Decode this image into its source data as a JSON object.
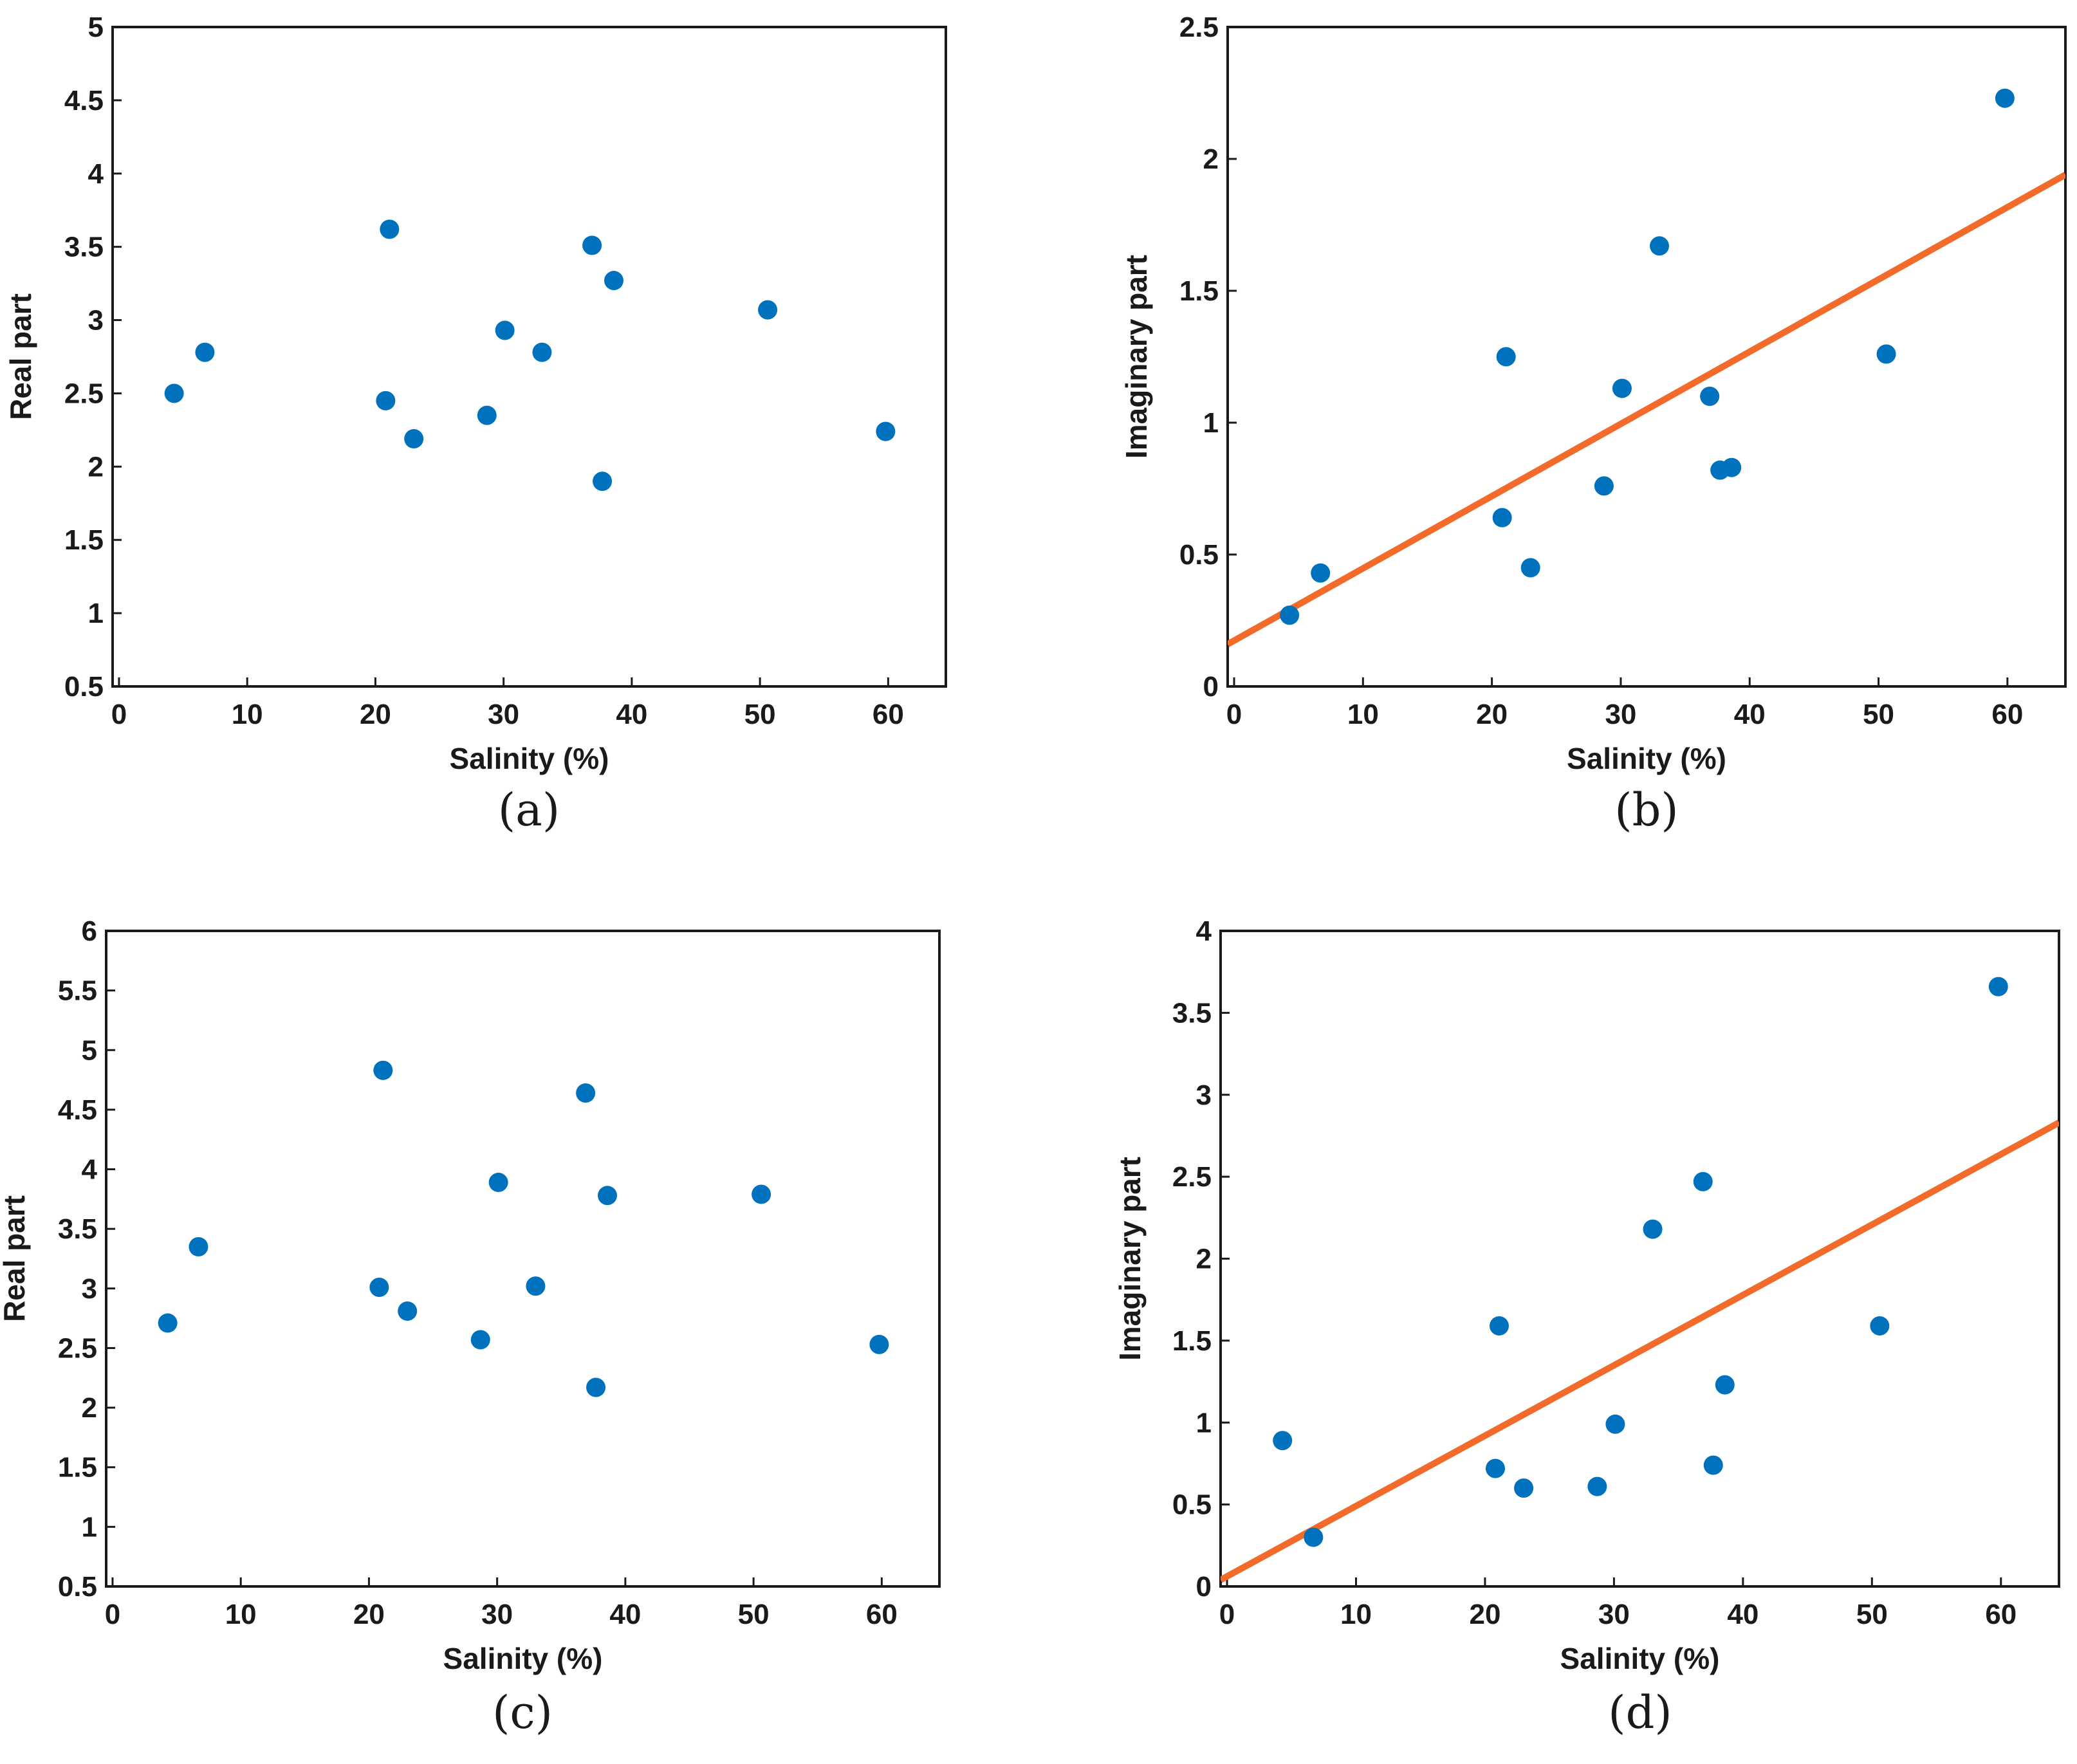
{
  "figure": {
    "marker_color": "#0072BD",
    "fit_color": "#F26B2A"
  },
  "chart_data": [
    {
      "type": "scatter",
      "caption": "(a)",
      "xlabel": "Salinity (%)",
      "ylabel": "Real part",
      "xlim": [
        -0.5,
        64.5
      ],
      "ylim": [
        0.5,
        5
      ],
      "xticks": [
        0,
        10,
        20,
        30,
        40,
        50,
        60
      ],
      "xtick_labels": [
        "0",
        "10",
        "20",
        "30",
        "40",
        "50",
        "60"
      ],
      "yticks": [
        0.5,
        1,
        1.5,
        2,
        2.5,
        3,
        3.5,
        4,
        4.5,
        5
      ],
      "ytick_labels": [
        "0.5",
        "1",
        "1.5",
        "2",
        "2.5",
        "3",
        "3.5",
        "4",
        "4.5",
        "5"
      ],
      "points": [
        {
          "x": 4.3,
          "y": 2.5
        },
        {
          "x": 6.7,
          "y": 2.78
        },
        {
          "x": 20.8,
          "y": 2.45
        },
        {
          "x": 21.1,
          "y": 3.62
        },
        {
          "x": 23.0,
          "y": 2.19
        },
        {
          "x": 28.7,
          "y": 2.35
        },
        {
          "x": 30.1,
          "y": 2.93
        },
        {
          "x": 33.0,
          "y": 2.78
        },
        {
          "x": 36.9,
          "y": 3.51
        },
        {
          "x": 37.7,
          "y": 1.9
        },
        {
          "x": 38.6,
          "y": 3.27
        },
        {
          "x": 50.6,
          "y": 3.07
        },
        {
          "x": 59.8,
          "y": 2.24
        }
      ],
      "fit": null
    },
    {
      "type": "scatter",
      "caption": "(b)",
      "xlabel": "Salinity (%)",
      "ylabel": "Imaginary part",
      "xlim": [
        -0.5,
        64.5
      ],
      "ylim": [
        0,
        2.5
      ],
      "xticks": [
        0,
        10,
        20,
        30,
        40,
        50,
        60
      ],
      "xtick_labels": [
        "0",
        "10",
        "20",
        "30",
        "40",
        "50",
        "60"
      ],
      "yticks": [
        0,
        0.5,
        1,
        1.5,
        2,
        2.5
      ],
      "ytick_labels": [
        "0",
        "0.5",
        "1",
        "1.5",
        "2",
        "2.5"
      ],
      "points": [
        {
          "x": 4.3,
          "y": 0.27
        },
        {
          "x": 6.7,
          "y": 0.43
        },
        {
          "x": 20.8,
          "y": 0.64
        },
        {
          "x": 21.1,
          "y": 1.25
        },
        {
          "x": 23.0,
          "y": 0.45
        },
        {
          "x": 28.7,
          "y": 0.76
        },
        {
          "x": 30.1,
          "y": 1.13
        },
        {
          "x": 33.0,
          "y": 1.67
        },
        {
          "x": 36.9,
          "y": 1.1
        },
        {
          "x": 37.7,
          "y": 0.82
        },
        {
          "x": 38.6,
          "y": 0.83
        },
        {
          "x": 50.6,
          "y": 1.26
        },
        {
          "x": 59.8,
          "y": 2.23
        }
      ],
      "fit": {
        "x": [
          -0.5,
          64.5
        ],
        "y": [
          0.16,
          1.94
        ]
      }
    },
    {
      "type": "scatter",
      "caption": "(c)",
      "xlabel": "Salinity (%)",
      "ylabel": "Real part",
      "xlim": [
        -0.5,
        64.5
      ],
      "ylim": [
        0.5,
        6
      ],
      "xticks": [
        0,
        10,
        20,
        30,
        40,
        50,
        60
      ],
      "xtick_labels": [
        "0",
        "10",
        "20",
        "30",
        "40",
        "50",
        "60"
      ],
      "yticks": [
        0.5,
        1,
        1.5,
        2,
        2.5,
        3,
        3.5,
        4,
        4.5,
        5,
        5.5,
        6
      ],
      "ytick_labels": [
        "0.5",
        "1",
        "1.5",
        "2",
        "2.5",
        "3",
        "3.5",
        "4",
        "4.5",
        "5",
        "5.5",
        "6"
      ],
      "points": [
        {
          "x": 4.3,
          "y": 2.71
        },
        {
          "x": 6.7,
          "y": 3.35
        },
        {
          "x": 20.8,
          "y": 3.01
        },
        {
          "x": 21.1,
          "y": 4.83
        },
        {
          "x": 23.0,
          "y": 2.81
        },
        {
          "x": 28.7,
          "y": 2.57
        },
        {
          "x": 30.1,
          "y": 3.89
        },
        {
          "x": 33.0,
          "y": 3.02
        },
        {
          "x": 36.9,
          "y": 4.64
        },
        {
          "x": 37.7,
          "y": 2.17
        },
        {
          "x": 38.6,
          "y": 3.78
        },
        {
          "x": 50.6,
          "y": 3.79
        },
        {
          "x": 59.8,
          "y": 2.53
        }
      ],
      "fit": null
    },
    {
      "type": "scatter",
      "caption": "(d)",
      "xlabel": "Salinity (%)",
      "ylabel": "Imaginary part",
      "xlim": [
        -0.5,
        64.5
      ],
      "ylim": [
        0,
        4
      ],
      "xticks": [
        0,
        10,
        20,
        30,
        40,
        50,
        60
      ],
      "xtick_labels": [
        "0",
        "10",
        "20",
        "30",
        "40",
        "50",
        "60"
      ],
      "yticks": [
        0,
        0.5,
        1,
        1.5,
        2,
        2.5,
        3,
        3.5,
        4
      ],
      "ytick_labels": [
        "0",
        "0.5",
        "1",
        "1.5",
        "2",
        "2.5",
        "3",
        "3.5",
        "4"
      ],
      "points": [
        {
          "x": 4.3,
          "y": 0.89
        },
        {
          "x": 6.7,
          "y": 0.3
        },
        {
          "x": 20.8,
          "y": 0.72
        },
        {
          "x": 21.1,
          "y": 1.59
        },
        {
          "x": 23.0,
          "y": 0.6
        },
        {
          "x": 28.7,
          "y": 0.61
        },
        {
          "x": 30.1,
          "y": 0.99
        },
        {
          "x": 33.0,
          "y": 2.18
        },
        {
          "x": 36.9,
          "y": 2.47
        },
        {
          "x": 37.7,
          "y": 0.74
        },
        {
          "x": 38.6,
          "y": 1.23
        },
        {
          "x": 50.6,
          "y": 1.59
        },
        {
          "x": 59.8,
          "y": 3.66
        }
      ],
      "fit": {
        "x": [
          -0.5,
          64.5
        ],
        "y": [
          0.04,
          2.83
        ]
      }
    }
  ]
}
